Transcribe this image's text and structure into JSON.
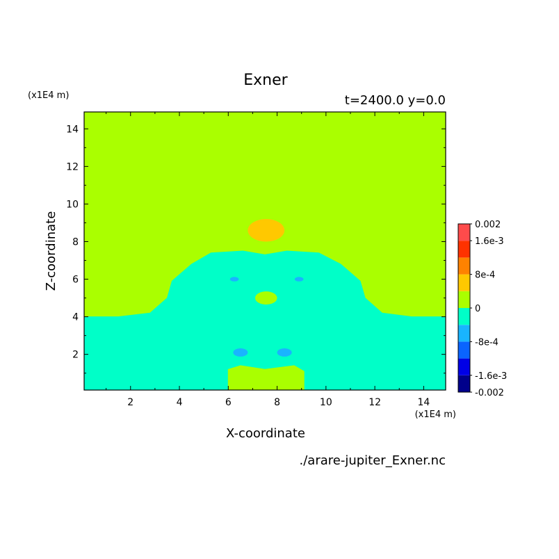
{
  "chart_data": {
    "type": "heatmap",
    "title": "Exner",
    "subtitle": "t=2400.0 y=0.0",
    "xlabel": "X-coordinate",
    "ylabel": "Z-coordinate",
    "x_unit": "(x1E4 m)",
    "y_unit": "(x1E4 m)",
    "xlim": [
      0.1,
      14.9
    ],
    "ylim": [
      0.1,
      14.9
    ],
    "x_ticks": [
      2,
      4,
      6,
      8,
      10,
      12,
      14
    ],
    "y_ticks": [
      2,
      4,
      6,
      8,
      10,
      12,
      14
    ],
    "source_file": "./arare-jupiter_Exner.nc",
    "colorbar": {
      "levels": [
        -0.002,
        -0.0016,
        -0.0012,
        -0.0008,
        -0.0004,
        0,
        0.0004,
        0.0008,
        0.0012,
        0.0016,
        0.002
      ],
      "colors": [
        "#00008b",
        "#0000e6",
        "#0a64ff",
        "#19b4ff",
        "#00ffc8",
        "#aaff00",
        "#ffc800",
        "#ff8200",
        "#ff3200",
        "#ff4b4b"
      ],
      "labels": [
        {
          "value": 0.002,
          "text": "0.002"
        },
        {
          "value": 0.0016,
          "text": "1.6e-3"
        },
        {
          "value": 0.0008,
          "text": "8e-4"
        },
        {
          "value": 0,
          "text": "0"
        },
        {
          "value": -0.0008,
          "text": "-8e-4"
        },
        {
          "value": -0.0016,
          "text": "-1.6e-3"
        },
        {
          "value": -0.002,
          "text": "-0.002"
        }
      ]
    },
    "background_value_range": [
      0,
      0.0004
    ],
    "regions": [
      {
        "label": "upper-positive-anomaly",
        "value_range": [
          0.0004,
          0.0008
        ],
        "center": [
          7.55,
          8.6
        ],
        "radius": [
          0.75,
          0.6
        ]
      },
      {
        "label": "negative-dome",
        "value_range": [
          -0.0004,
          0
        ],
        "boundary": [
          [
            0.1,
            4.0
          ],
          [
            1.5,
            4.0
          ],
          [
            2.8,
            4.2
          ],
          [
            3.5,
            5.0
          ],
          [
            3.7,
            5.9
          ],
          [
            4.5,
            6.8
          ],
          [
            5.3,
            7.4
          ],
          [
            6.6,
            7.5
          ],
          [
            7.5,
            7.3
          ],
          [
            8.4,
            7.5
          ],
          [
            9.7,
            7.4
          ],
          [
            10.6,
            6.8
          ],
          [
            11.4,
            5.9
          ],
          [
            11.6,
            5.0
          ],
          [
            12.3,
            4.2
          ],
          [
            13.5,
            4.0
          ],
          [
            14.9,
            4.0
          ],
          [
            14.9,
            0.1
          ],
          [
            0.1,
            0.1
          ]
        ]
      },
      {
        "label": "small-positive-center",
        "value_range": [
          0,
          0.0004
        ],
        "center": [
          7.55,
          5.0
        ],
        "radius": [
          0.45,
          0.35
        ]
      },
      {
        "label": "left-negative-cell",
        "value_range": [
          -0.0008,
          -0.0004
        ],
        "center": [
          6.25,
          6.0
        ],
        "radius": [
          0.18,
          0.12
        ]
      },
      {
        "label": "right-negative-cell",
        "value_range": [
          -0.0008,
          -0.0004
        ],
        "center": [
          8.9,
          6.0
        ],
        "radius": [
          0.18,
          0.12
        ]
      },
      {
        "label": "lower-left-negative-cell",
        "value_range": [
          -0.0008,
          -0.0004
        ],
        "center": [
          6.5,
          2.1
        ],
        "radius": [
          0.3,
          0.22
        ]
      },
      {
        "label": "lower-right-negative-cell",
        "value_range": [
          -0.0008,
          -0.0004
        ],
        "center": [
          8.3,
          2.1
        ],
        "radius": [
          0.3,
          0.22
        ]
      },
      {
        "label": "bottom-positive-block",
        "value_range": [
          0,
          0.0004
        ],
        "boundary": [
          [
            6.0,
            0.1
          ],
          [
            6.0,
            1.2
          ],
          [
            6.5,
            1.4
          ],
          [
            7.5,
            1.2
          ],
          [
            8.7,
            1.4
          ],
          [
            9.1,
            1.1
          ],
          [
            9.1,
            0.1
          ]
        ]
      }
    ]
  }
}
